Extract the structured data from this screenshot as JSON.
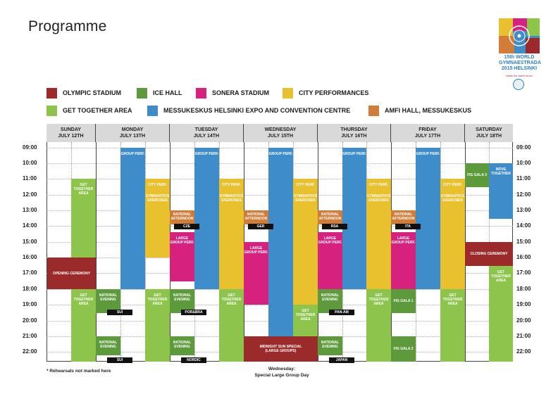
{
  "title": "Programme",
  "logo": {
    "text_lines": [
      "15th WORLD",
      "GYMNAESTRADA",
      "2015 HELSINKI"
    ],
    "tagline": "Make the earth move"
  },
  "colors": {
    "olympic_stadium": "#9b2a2a",
    "ice_hall": "#5c9a3c",
    "sonera_stadium": "#d6217f",
    "city_performances": "#e9c02e",
    "get_together": "#8dc54c",
    "messukeskus": "#3f8cca",
    "amfi_hall": "#d27c3a",
    "header_bg": "#d9d9d9",
    "black_tag": "#111111"
  },
  "legend": [
    {
      "key": "olympic_stadium",
      "label": "OLYMPIC STADIUM"
    },
    {
      "key": "ice_hall",
      "label": "ICE HALL"
    },
    {
      "key": "sonera_stadium",
      "label": "SONERA STADIUM"
    },
    {
      "key": "city_performances",
      "label": "CITY PERFORMANCES"
    },
    {
      "key": "get_together",
      "label": "GET TOGETHER AREA"
    },
    {
      "key": "messukeskus",
      "label": "MESSUKESKUS HELSINKI EXPO AND CONVENTION CENTRE"
    },
    {
      "key": "amfi_hall",
      "label": "AMFI HALL, MESSUKESKUS"
    }
  ],
  "days": [
    {
      "name": "SUNDAY",
      "date": "JULY 12TH"
    },
    {
      "name": "MONDAY",
      "date": "JULY 13TH"
    },
    {
      "name": "TUESDAY",
      "date": "JULY 14TH"
    },
    {
      "name": "WEDNESDAY",
      "date": "JULY 15TH"
    },
    {
      "name": "THURSDAY",
      "date": "JULY 16TH"
    },
    {
      "name": "FRIDAY",
      "date": "JULY 17TH"
    },
    {
      "name": "SATURDAY",
      "date": "JULY 18TH"
    }
  ],
  "times": [
    "09:00",
    "10:00",
    "11:00",
    "12:00",
    "13:00",
    "14:00",
    "15:00",
    "16:00",
    "17:00",
    "18:00",
    "19:00",
    "20:00",
    "21:00",
    "22:00"
  ],
  "labels": {
    "get_together_area": "GET TOGETHER AREA",
    "group_perf": "GROUP PERF.",
    "city_perf": "CITY PERF.",
    "gymnastics_exercises": "GYMNASTICS EXERCISES",
    "national_afternoon": "NATIONAL AFTERNOON",
    "large_group_perf": "LARGE GROUP PERF.",
    "large_group_perf_wed": "LARGE GROUP PERF.",
    "national_evening": "NATIONAL EVENING",
    "opening_ceremony": "OPENING CEREMONY",
    "closing_ceremony": "CLOSING CEREMONY",
    "midnight_sun_1": "MIDNIGHT SUN SPECIAL",
    "midnight_sun_2": "(LARGE GROUPS)",
    "fig_gala_1": "FIG GALA 1",
    "fig_gala_2": "FIG GALA 2",
    "fig_gala_3": "FIG GALA 3",
    "move_together": "MOVE TOGETHER"
  },
  "tags": {
    "sui": "SUI",
    "por_bra": "POR&BRA",
    "nordic": "NORDIC",
    "cze": "CZE",
    "ger": "GER",
    "rsa": "RSA",
    "ita": "ITA",
    "pan_am": "PAN-AM",
    "japan": "JAPAN"
  },
  "footer": {
    "note": "* Rehearsals not marked here",
    "wed_label": "Wednesday:",
    "wed_text": "Special Large Group Day"
  }
}
